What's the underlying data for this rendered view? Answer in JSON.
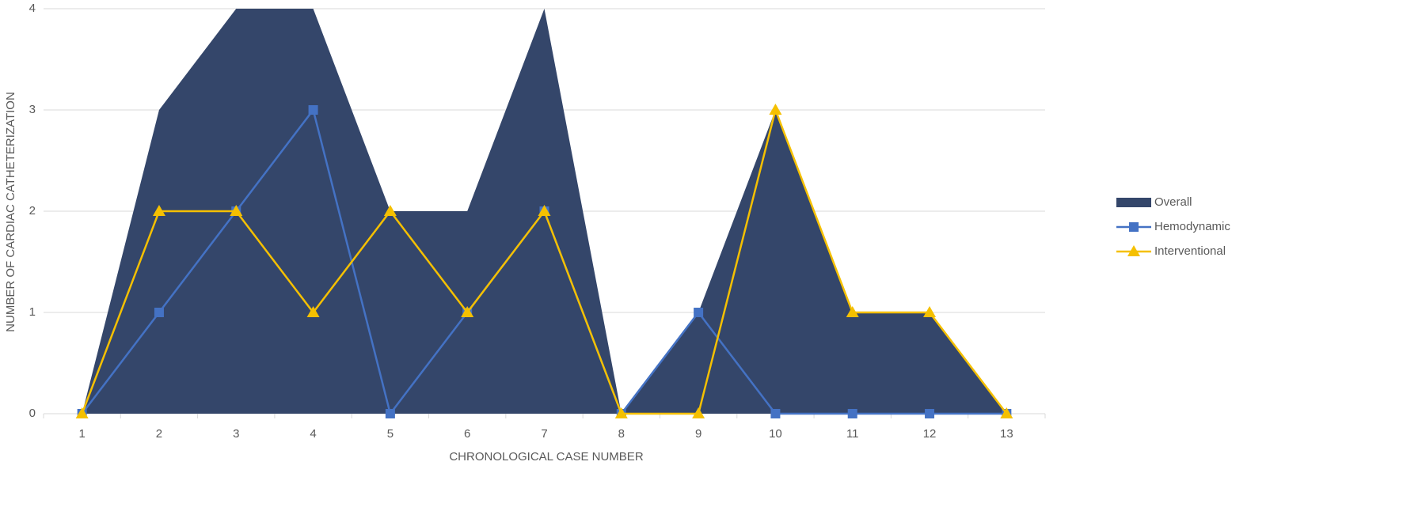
{
  "chart_data": {
    "type": "area",
    "x_label": "CHRONOLOGICAL CASE NUMBER",
    "y_label": "NUMBER OF CARDIAC CATHETERIZATION",
    "categories": [
      "1",
      "2",
      "3",
      "4",
      "5",
      "6",
      "7",
      "8",
      "9",
      "10",
      "11",
      "12",
      "13"
    ],
    "series": [
      {
        "name": "Overall",
        "type": "area",
        "color": "#34466a",
        "values": [
          0,
          3,
          4,
          4,
          2,
          2,
          4,
          0,
          1,
          3,
          1,
          1,
          0
        ]
      },
      {
        "name": "Hemodynamic",
        "type": "line",
        "marker": "square",
        "color": "#4472c4",
        "values": [
          0,
          1,
          2,
          3,
          0,
          1,
          2,
          0,
          1,
          0,
          0,
          0,
          0
        ]
      },
      {
        "name": "Interventional",
        "type": "line",
        "marker": "triangle",
        "color": "#f5c000",
        "values": [
          0,
          2,
          2,
          1,
          2,
          1,
          2,
          0,
          0,
          3,
          1,
          1,
          0
        ]
      }
    ],
    "ylim": [
      0,
      4
    ],
    "yticks": [
      0,
      1,
      2,
      3,
      4
    ],
    "grid": true,
    "legend": "right"
  }
}
